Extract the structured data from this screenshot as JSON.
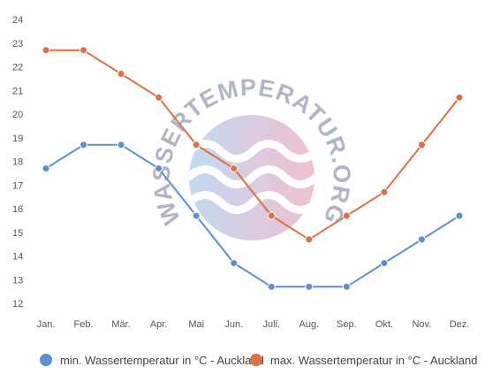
{
  "watermark": {
    "text": "WASSERTEMPERATUR.ORG"
  },
  "chart_data": {
    "type": "line",
    "categories": [
      "Jan.",
      "Feb.",
      "Mär.",
      "Apr.",
      "Mai",
      "Jun.",
      "Juli.",
      "Aug.",
      "Sep.",
      "Okt.",
      "Nov.",
      "Dez."
    ],
    "series": [
      {
        "name": "min. Wassertemperatur in °C - Auckland",
        "color": "#5b8fd6",
        "values": [
          17.7,
          18.7,
          18.7,
          17.7,
          15.7,
          13.7,
          12.7,
          12.7,
          12.7,
          13.7,
          14.7,
          15.7
        ]
      },
      {
        "name": "max. Wassertemperatur in °C - Auckland",
        "color": "#e0703f",
        "values": [
          22.7,
          22.7,
          21.7,
          20.7,
          18.7,
          17.7,
          15.7,
          14.7,
          15.7,
          16.7,
          18.7,
          20.7
        ]
      }
    ],
    "yticks": [
      12,
      13,
      14,
      15,
      16,
      17,
      18,
      19,
      20,
      21,
      22,
      23,
      24
    ],
    "ylim": [
      12,
      24
    ],
    "grid": false,
    "legend": "bottom",
    "title": "",
    "xlabel": "",
    "ylabel": ""
  }
}
